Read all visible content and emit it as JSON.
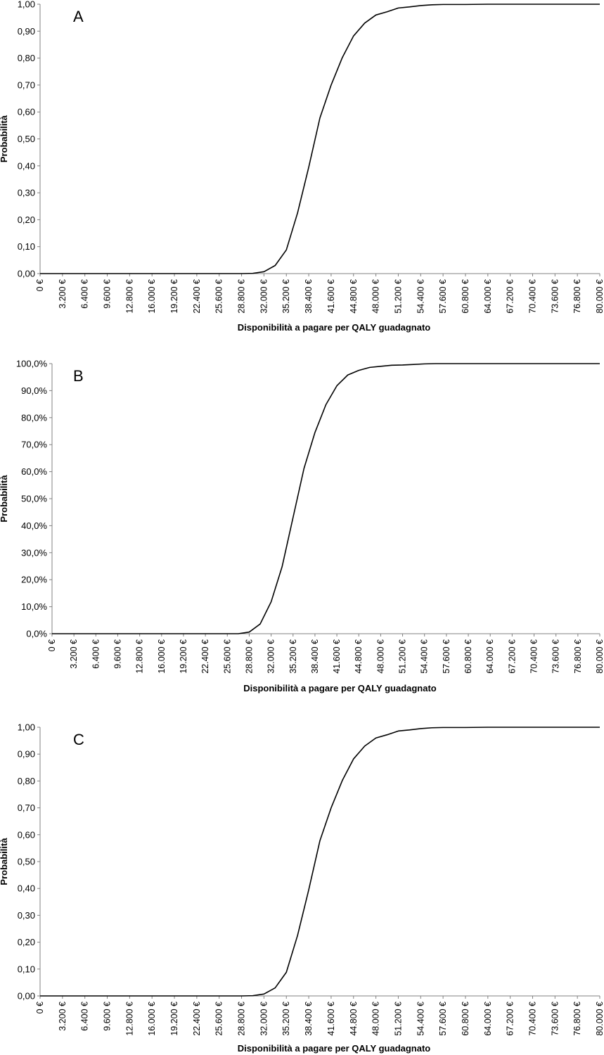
{
  "chart_data": [
    {
      "type": "line",
      "panel_label": "A",
      "xlabel": "Disponibilità a pagare per QALY guadagnato",
      "ylabel": "Probabilità",
      "ylim": [
        0,
        1
      ],
      "xlim": [
        0,
        80000
      ],
      "grid": false,
      "y_ticks": [
        "0,00",
        "0,10",
        "0,20",
        "0,30",
        "0,40",
        "0,50",
        "0,60",
        "0,70",
        "0,80",
        "0,90",
        "1,00"
      ],
      "x_ticks": [
        "0 €",
        "3.200 €",
        "6.400 €",
        "9.600 €",
        "12.800 €",
        "16.000 €",
        "19.200 €",
        "22.400 €",
        "25.600 €",
        "28.800 €",
        "32.000 €",
        "35.200 €",
        "38.400 €",
        "41.600 €",
        "44.800 €",
        "48.000 €",
        "51.200 €",
        "54.400 €",
        "57.600 €",
        "60.800 €",
        "64.000 €",
        "67.200 €",
        "70.400 €",
        "73.600 €",
        "76.800 €",
        "80.000 €"
      ],
      "series": [
        {
          "x": [
            0,
            28800,
            30400,
            32000,
            33600,
            35200,
            36800,
            38400,
            40000,
            41600,
            43200,
            44800,
            46400,
            48000,
            49600,
            51200,
            52800,
            54400,
            56000,
            57600,
            60800,
            64000,
            80000
          ],
          "values": [
            0,
            0,
            0.001,
            0.007,
            0.03,
            0.088,
            0.225,
            0.395,
            0.578,
            0.7,
            0.802,
            0.882,
            0.93,
            0.96,
            0.972,
            0.986,
            0.99,
            0.995,
            0.998,
            0.999,
            0.999,
            1,
            1
          ]
        }
      ]
    },
    {
      "type": "line",
      "panel_label": "B",
      "xlabel": "Disponibilità a pagare per QALY guadagnato",
      "ylabel": "Probabilità",
      "ylim": [
        0,
        1
      ],
      "xlim": [
        0,
        80000
      ],
      "grid": false,
      "y_ticks": [
        "0,0%",
        "10,0%",
        "20,0%",
        "30,0%",
        "40,0%",
        "50,0%",
        "60,0%",
        "70,0%",
        "80,0%",
        "90,0%",
        "100,0%"
      ],
      "x_ticks": [
        "0 €",
        "3.200 €",
        "6.400 €",
        "9.600 €",
        "12.800 €",
        "16.000 €",
        "19.200 €",
        "22.400 €",
        "25.600 €",
        "28.800 €",
        "32.000 €",
        "35.200 €",
        "38.400 €",
        "41.600 €",
        "44.800 €",
        "48.000 €",
        "51.200 €",
        "54.400 €",
        "57.600 €",
        "60.800 €",
        "64.000 €",
        "67.200 €",
        "70.400 €",
        "73.600 €",
        "76.800 €",
        "80.000 €"
      ],
      "series": [
        {
          "x": [
            0,
            27200,
            28800,
            30400,
            32000,
            33600,
            35200,
            36800,
            38400,
            40000,
            41600,
            43200,
            44800,
            46400,
            48000,
            49600,
            51200,
            52800,
            54400,
            56000,
            80000
          ],
          "values": [
            0,
            0,
            0.006,
            0.036,
            0.118,
            0.248,
            0.43,
            0.612,
            0.745,
            0.848,
            0.918,
            0.958,
            0.975,
            0.986,
            0.99,
            0.994,
            0.995,
            0.997,
            0.999,
            1,
            1
          ]
        }
      ]
    },
    {
      "type": "line",
      "panel_label": "C",
      "xlabel": "Disponibilità a pagare per QALY guadagnato",
      "ylabel": "Probabilità",
      "ylim": [
        0,
        1
      ],
      "xlim": [
        0,
        80000
      ],
      "grid": false,
      "y_ticks": [
        "0,00",
        "0,10",
        "0,20",
        "0,30",
        "0,40",
        "0,50",
        "0,60",
        "0,70",
        "0,80",
        "0,90",
        "1,00"
      ],
      "x_ticks": [
        "0 €",
        "3.200 €",
        "6.400 €",
        "9.600 €",
        "12.800 €",
        "16.000 €",
        "19.200 €",
        "22.400 €",
        "25.600 €",
        "28.800 €",
        "32.000 €",
        "35.200 €",
        "38.400 €",
        "41.600 €",
        "44.800 €",
        "48.000 €",
        "51.200 €",
        "54.400 €",
        "57.600 €",
        "60.800 €",
        "64.000 €",
        "67.200 €",
        "70.400 €",
        "73.600 €",
        "76.800 €",
        "80.000 €"
      ],
      "series": [
        {
          "x": [
            0,
            28800,
            30400,
            32000,
            33600,
            35200,
            36800,
            38400,
            40000,
            41600,
            43200,
            44800,
            46400,
            48000,
            49600,
            51200,
            52800,
            54400,
            56000,
            57600,
            60800,
            64000,
            80000
          ],
          "values": [
            0,
            0,
            0.001,
            0.007,
            0.03,
            0.088,
            0.225,
            0.395,
            0.578,
            0.7,
            0.802,
            0.882,
            0.93,
            0.96,
            0.972,
            0.986,
            0.99,
            0.995,
            0.998,
            0.999,
            0.999,
            1,
            1
          ]
        }
      ]
    }
  ]
}
